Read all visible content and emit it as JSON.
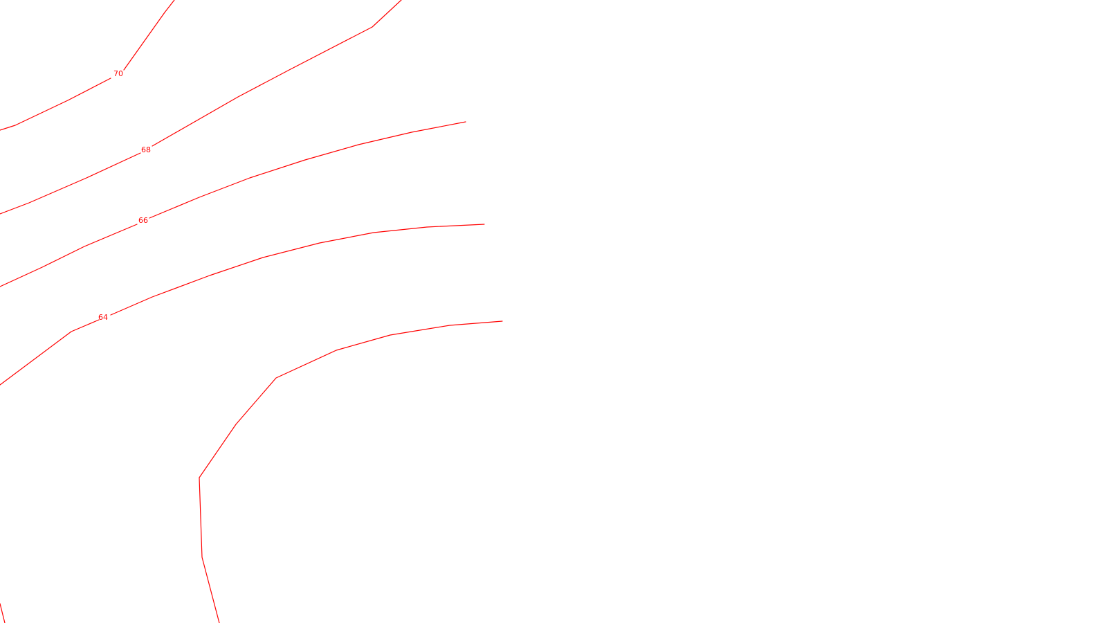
{
  "map": {
    "line_color": "#ff0000",
    "background": "#ffffff",
    "contour_labels": [
      "70",
      "68",
      "66",
      "64"
    ]
  }
}
